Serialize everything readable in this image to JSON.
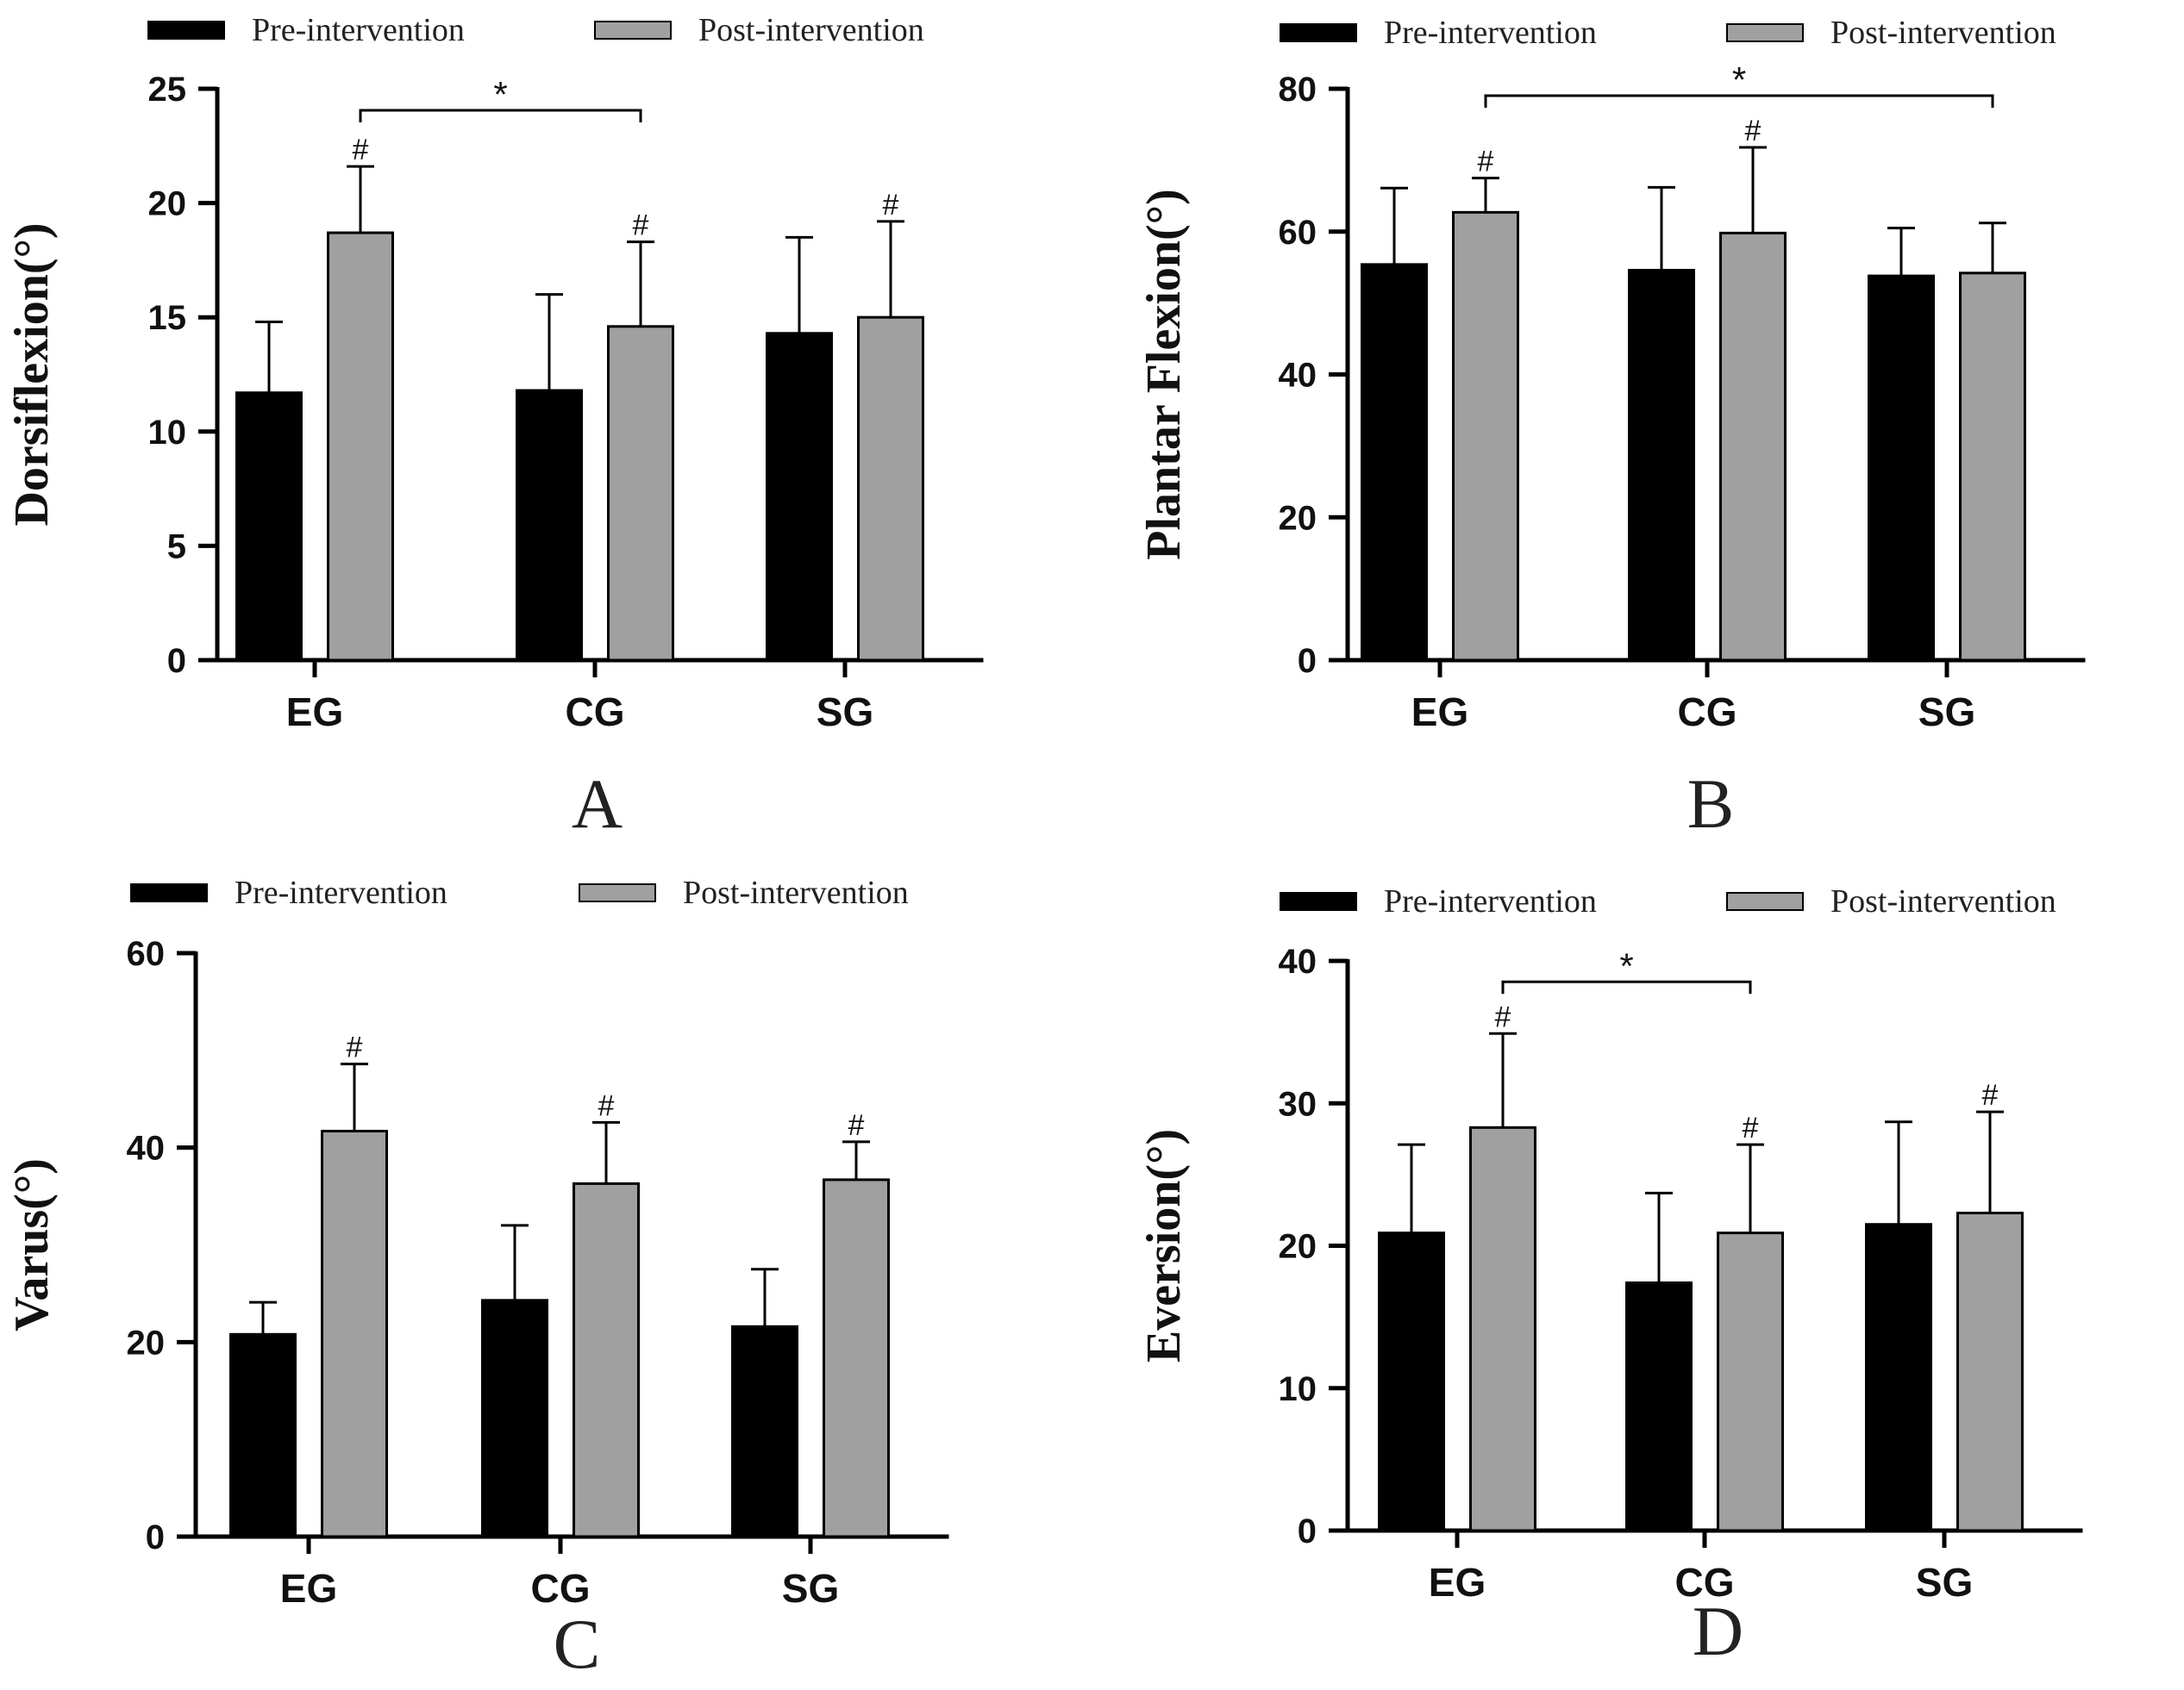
{
  "figure": {
    "legend": {
      "pre_label": "Pre-intervention",
      "post_label": "Post-intervention"
    }
  },
  "colors": {
    "pre": "#000000",
    "post": "#a0a0a0",
    "axis": "#000000",
    "error": "#000000"
  },
  "chart_data": [
    {
      "type": "bar",
      "panel_label": "A",
      "ylabel": "Dorsiflexion(°)",
      "categories": [
        "EG",
        "CG",
        "SG"
      ],
      "ylim": [
        0,
        25
      ],
      "yticks": [
        0,
        5,
        10,
        15,
        20,
        25
      ],
      "series": [
        {
          "name": "Pre-intervention",
          "values": [
            11.7,
            11.8,
            14.3
          ],
          "errors": [
            3.1,
            4.2,
            4.2
          ]
        },
        {
          "name": "Post-intervention",
          "values": [
            18.7,
            14.6,
            15.0
          ],
          "errors": [
            2.9,
            3.7,
            4.2
          ]
        }
      ],
      "hash_markers": [
        [
          false,
          true
        ],
        [
          false,
          true
        ],
        [
          false,
          true
        ]
      ],
      "significance": [
        {
          "from": 0,
          "to": 1,
          "label": "*"
        }
      ]
    },
    {
      "type": "bar",
      "panel_label": "B",
      "ylabel": "Plantar Flexion(°)",
      "categories": [
        "EG",
        "CG",
        "SG"
      ],
      "ylim": [
        0,
        80
      ],
      "yticks": [
        0,
        20,
        40,
        60,
        80
      ],
      "series": [
        {
          "name": "Pre-intervention",
          "values": [
            55.4,
            54.6,
            53.8
          ],
          "errors": [
            10.7,
            11.6,
            6.7
          ]
        },
        {
          "name": "Post-intervention",
          "values": [
            62.7,
            59.8,
            54.2
          ],
          "errors": [
            4.8,
            12.0,
            7.0
          ]
        }
      ],
      "hash_markers": [
        [
          false,
          true
        ],
        [
          false,
          true
        ],
        [
          false,
          false
        ]
      ],
      "significance": [
        {
          "from": 0,
          "to": 2,
          "label": "*"
        }
      ]
    },
    {
      "type": "bar",
      "panel_label": "C",
      "ylabel": "Varus(°)",
      "categories": [
        "EG",
        "CG",
        "SG"
      ],
      "ylim": [
        0,
        60
      ],
      "yticks": [
        0,
        20,
        40,
        60
      ],
      "series": [
        {
          "name": "Pre-intervention",
          "values": [
            20.8,
            24.3,
            21.6
          ],
          "errors": [
            3.3,
            7.7,
            5.9
          ]
        },
        {
          "name": "Post-intervention",
          "values": [
            41.7,
            36.3,
            36.7
          ],
          "errors": [
            6.9,
            6.3,
            3.9
          ]
        }
      ],
      "hash_markers": [
        [
          false,
          true
        ],
        [
          false,
          true
        ],
        [
          false,
          true
        ]
      ],
      "significance": []
    },
    {
      "type": "bar",
      "panel_label": "D",
      "ylabel": "Eversion(°)",
      "categories": [
        "EG",
        "CG",
        "SG"
      ],
      "ylim": [
        0,
        40
      ],
      "yticks": [
        0,
        10,
        20,
        30,
        40
      ],
      "series": [
        {
          "name": "Pre-intervention",
          "values": [
            20.9,
            17.4,
            21.5
          ],
          "errors": [
            6.2,
            6.3,
            7.2
          ]
        },
        {
          "name": "Post-intervention",
          "values": [
            28.3,
            20.9,
            22.3
          ],
          "errors": [
            6.6,
            6.2,
            7.1
          ]
        }
      ],
      "hash_markers": [
        [
          false,
          true
        ],
        [
          false,
          true
        ],
        [
          false,
          true
        ]
      ],
      "significance": [
        {
          "from": 0,
          "to": 1,
          "label": "*"
        }
      ]
    }
  ]
}
